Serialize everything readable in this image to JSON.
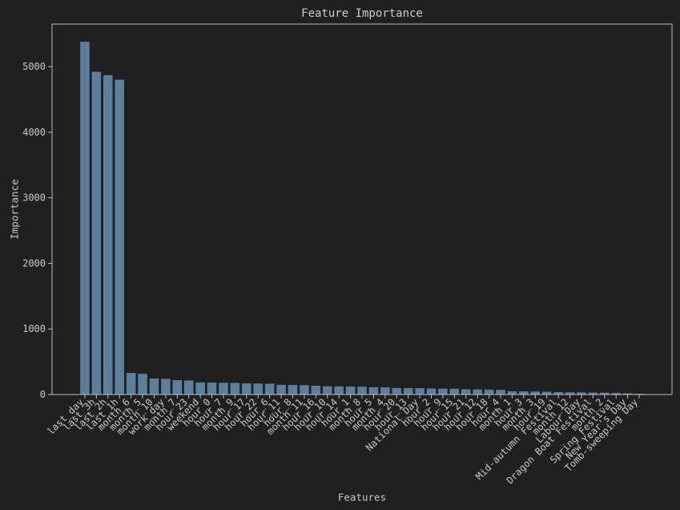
{
  "chart_data": {
    "type": "bar",
    "title": "Feature Importance",
    "xlabel": "Features",
    "ylabel": "Importance",
    "categories": [
      "last_day",
      "last_3h",
      "last_2h",
      "last_1h",
      "month_6",
      "month_5",
      "month_10",
      "work_day",
      "month_7",
      "hour_23",
      "weekend",
      "hour_0",
      "hour_7",
      "month_9",
      "hour_17",
      "hour_22",
      "hour_6",
      "hour_11",
      "hour_8",
      "month_11",
      "hour_16",
      "hour_10",
      "hour_14",
      "hour_1",
      "month_8",
      "hour_5",
      "month_4",
      "hour_20",
      "hour_13",
      "National_Day",
      "hour_2",
      "hour_9",
      "hour_15",
      "hour_21",
      "hour_12",
      "hour_18",
      "hour_4",
      "month_1",
      "hour_3",
      "month_3",
      "hour_19",
      "Mid-autumn Festival",
      "month_12",
      "Labour Day",
      "Dragon Boat Festival",
      "month_2",
      "Spring Festival",
      "New Year's Day",
      "Tomb-sweeping Day"
    ],
    "values": [
      5380,
      4920,
      4870,
      4800,
      330,
      315,
      245,
      240,
      220,
      215,
      185,
      182,
      180,
      178,
      170,
      168,
      165,
      148,
      146,
      143,
      135,
      126,
      124,
      122,
      120,
      112,
      110,
      100,
      98,
      96,
      92,
      90,
      88,
      80,
      78,
      75,
      72,
      50,
      48,
      46,
      42,
      36,
      34,
      32,
      30,
      28,
      25,
      18,
      12
    ],
    "ylim": [
      0,
      5649
    ],
    "yticks": [
      0,
      1000,
      2000,
      3000,
      4000,
      5000
    ],
    "grid": false,
    "legend": "none"
  },
  "colors": {
    "background": "#202020",
    "bar": "#5b7f9c",
    "axis": "#bdbdbd",
    "text": "#c8c8c8"
  }
}
